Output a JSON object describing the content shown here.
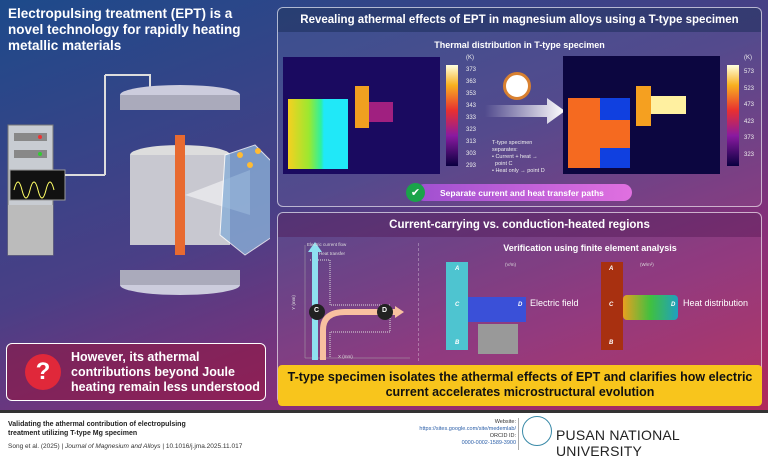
{
  "left": {
    "title": "Electropulsing treatment (EPT) is a novel technology for rapidly heating metallic materials",
    "question_icon": "question-mark-icon",
    "question_text": "However, its athermal contributions beyond Joule heating remain less understood"
  },
  "top_panel": {
    "title": "Revealing athermal effects of EPT in magnesium alloys using a T-type specimen",
    "subtitle": "Thermal distribution in T-type specimen",
    "left_colorbar": {
      "unit": "(K)",
      "ticks": [
        "373",
        "363",
        "353",
        "343",
        "333",
        "323",
        "313",
        "303",
        "293"
      ]
    },
    "right_colorbar": {
      "unit": "(K)",
      "ticks": [
        "573",
        "523",
        "473",
        "423",
        "373",
        "323"
      ]
    },
    "note_lines": [
      "T-type specimen",
      "separates:",
      "• Current + heat →",
      "  point C",
      "• Heat only → point D"
    ],
    "check_label": "Separate current and heat transfer paths"
  },
  "bottom_panel": {
    "title": "Current-carrying vs. conduction-heated regions",
    "plot": {
      "legend": [
        "Electric current flow",
        "Heat transfer"
      ],
      "xlabel": "X (mm)",
      "ylabel": "Y (mm)",
      "xticks": [
        "0",
        "10",
        "15",
        "20",
        "25"
      ],
      "yticks": [
        "30",
        "25",
        "20",
        "15",
        "10",
        "5",
        "0"
      ],
      "points": [
        "C",
        "D"
      ]
    },
    "fea_title": "Verification using finite element analysis",
    "fea_left": {
      "unit": "(V/m)",
      "labels": [
        "A",
        "C",
        "D",
        "B"
      ],
      "caption": "Electric field"
    },
    "fea_right": {
      "unit": "(W/m²)",
      "labels": [
        "A",
        "C",
        "D",
        "B"
      ],
      "caption": "Heat distribution"
    }
  },
  "conclusion": "T-type specimen isolates the athermal effects of EPT and clarifies how electric current accelerates microstructural evolution",
  "footer": {
    "title": "Validating the athermal contribution of electropulsing treatment utilizing T-type Mg specimen",
    "authors": "Song et al. (2025)",
    "journal": "Journal of Magnesium and Alloys",
    "doi": "10.1016/j.jma.2025.11.017",
    "website_label": "Website:",
    "website": "https://sites.google.com/site/medemlab/",
    "orcid_label": "ORCID ID:",
    "orcid": "0000-0002-1589-3900",
    "university": "PUSAN NATIONAL UNIVERSITY"
  }
}
